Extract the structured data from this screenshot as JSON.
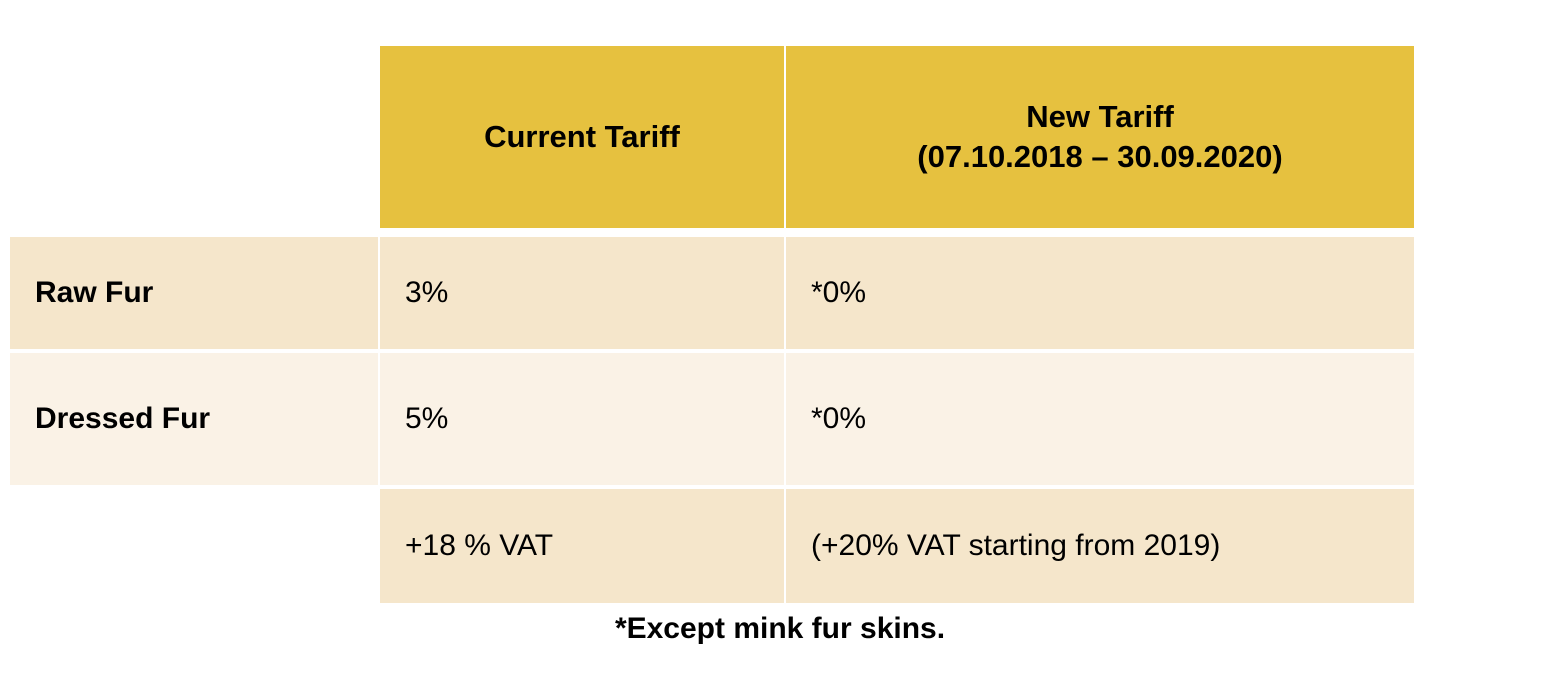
{
  "table": {
    "header": {
      "columns": [
        {
          "lines": [
            "Current Tariff"
          ]
        },
        {
          "lines": [
            "New Tariff",
            "(07.10.2018 – 30.09.2020)"
          ]
        }
      ]
    },
    "rows": [
      {
        "label": "Raw Fur",
        "cells": [
          "3%",
          "*0%"
        ]
      },
      {
        "label": "Dressed Fur",
        "cells": [
          "5%",
          "*0%"
        ]
      },
      {
        "cells": [
          "+18 % VAT",
          "(+20% VAT starting from 2019)"
        ]
      }
    ]
  },
  "footnote": "*Except mink fur skins."
}
